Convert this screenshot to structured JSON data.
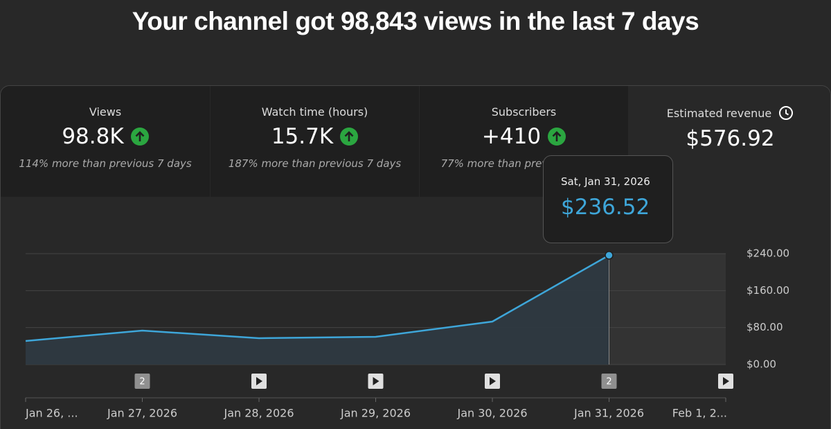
{
  "header": {
    "title": "Your channel got 98,843 views in the last 7 days"
  },
  "cards": [
    {
      "label": "Views",
      "value": "98.8K",
      "note": "114% more than previous 7 days"
    },
    {
      "label": "Watch time (hours)",
      "value": "15.7K",
      "note": "187% more than previous 7 days"
    },
    {
      "label": "Subscribers",
      "value": "+410",
      "note": "77% more than previous 7 days"
    },
    {
      "label": "Estimated revenue",
      "value": "$576.92"
    }
  ],
  "tooltip": {
    "date": "Sat, Jan 31, 2026"
  },
  "chart_data": {
    "type": "line",
    "categories": [
      "Jan 26, ...",
      "Jan 27, 2026",
      "Jan 28, 2026",
      "Jan 29, 2026",
      "Jan 30, 2026",
      "Jan 31, 2026",
      "Feb 1, 2..."
    ],
    "series": [
      {
        "color": "#3ea6d9",
        "values": [
          51,
          73.5,
          57,
          60,
          93,
          236.52,
          null
        ]
      }
    ],
    "value_labels": [
      null,
      null,
      null,
      null,
      null,
      "$236.52",
      null
    ],
    "event_counts": [
      null,
      "2",
      null,
      null,
      null,
      "2",
      null
    ],
    "ylim": [
      0,
      240
    ],
    "yticks": [
      {
        "value": 0,
        "label": "$0.00"
      },
      {
        "value": 80,
        "label": "$80.00"
      },
      {
        "value": 160,
        "label": "$160.00"
      },
      {
        "value": 240,
        "label": "$240.00"
      }
    ],
    "grid": true
  }
}
